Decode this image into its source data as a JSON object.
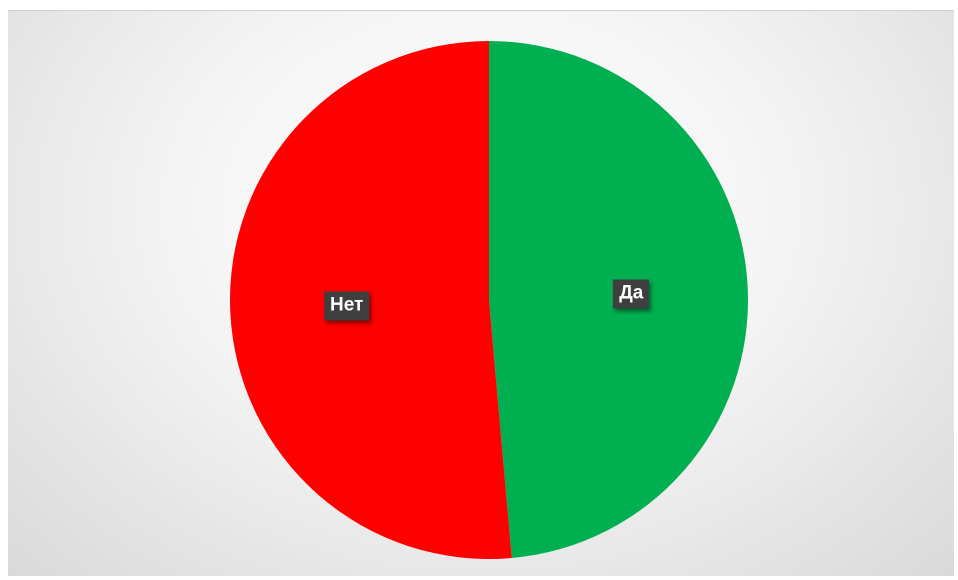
{
  "chart_data": {
    "type": "pie",
    "title": "",
    "legend": "none",
    "slices": [
      {
        "label": "Да",
        "value": 48.6,
        "color": "#00b050"
      },
      {
        "label": "Нет",
        "value": 51.4,
        "color": "#ff0000"
      }
    ]
  }
}
